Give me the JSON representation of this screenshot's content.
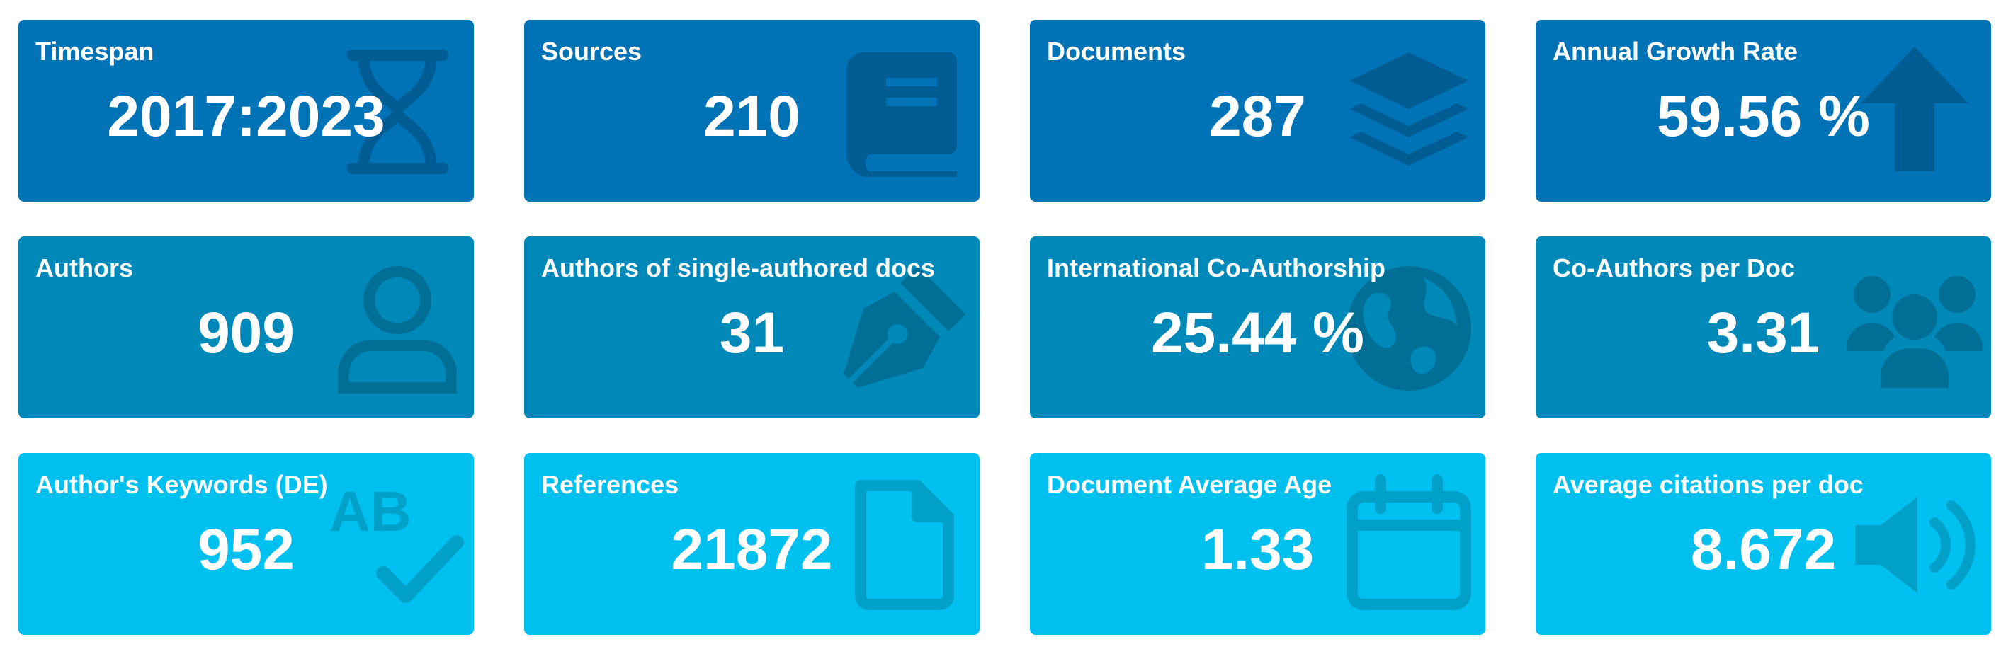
{
  "cards": [
    {
      "label": "Timespan",
      "value": "2017:2023",
      "icon": "hourglass-icon"
    },
    {
      "label": "Sources",
      "value": "210",
      "icon": "book-icon"
    },
    {
      "label": "Documents",
      "value": "287",
      "icon": "layers-icon"
    },
    {
      "label": "Annual Growth Rate",
      "value": "59.56 %",
      "icon": "arrow-up-icon"
    },
    {
      "label": "Authors",
      "value": "909",
      "icon": "user-icon"
    },
    {
      "label": "Authors of single-authored docs",
      "value": "31",
      "icon": "pen-nib-icon"
    },
    {
      "label": "International Co-Authorship",
      "value": "25.44 %",
      "icon": "globe-icon"
    },
    {
      "label": "Co-Authors per Doc",
      "value": "3.31",
      "icon": "users-icon"
    },
    {
      "label": "Author's Keywords (DE)",
      "value": "952",
      "icon": "spell-check-icon"
    },
    {
      "label": "References",
      "value": "21872",
      "icon": "file-icon"
    },
    {
      "label": "Document Average Age",
      "value": "1.33",
      "icon": "calendar-icon"
    },
    {
      "label": "Average citations per doc",
      "value": "8.672",
      "icon": "volume-icon"
    }
  ],
  "colors": {
    "row1_bg": "#0073b7",
    "row2_bg": "#0089b8",
    "row3_bg": "#00c0ef",
    "text": "#ffffff"
  }
}
